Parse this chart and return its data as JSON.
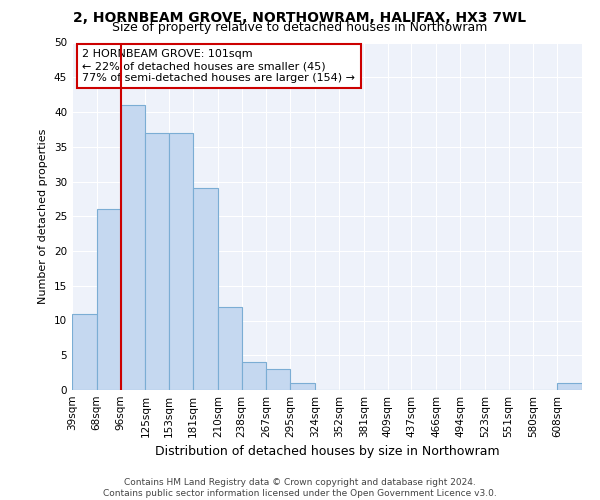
{
  "title1": "2, HORNBEAM GROVE, NORTHOWRAM, HALIFAX, HX3 7WL",
  "title2": "Size of property relative to detached houses in Northowram",
  "xlabel": "Distribution of detached houses by size in Northowram",
  "ylabel": "Number of detached properties",
  "footer1": "Contains HM Land Registry data © Crown copyright and database right 2024.",
  "footer2": "Contains public sector information licensed under the Open Government Licence v3.0.",
  "annotation_line1": "2 HORNBEAM GROVE: 101sqm",
  "annotation_line2": "← 22% of detached houses are smaller (45)",
  "annotation_line3": "77% of semi-detached houses are larger (154) →",
  "property_size": 101,
  "bin_edges": [
    39,
    68,
    96,
    125,
    153,
    181,
    210,
    238,
    267,
    295,
    324,
    352,
    381,
    409,
    437,
    466,
    494,
    523,
    551,
    580,
    608,
    637
  ],
  "bin_labels": [
    "39sqm",
    "68sqm",
    "96sqm",
    "125sqm",
    "153sqm",
    "181sqm",
    "210sqm",
    "238sqm",
    "267sqm",
    "295sqm",
    "324sqm",
    "352sqm",
    "381sqm",
    "409sqm",
    "437sqm",
    "466sqm",
    "494sqm",
    "523sqm",
    "551sqm",
    "580sqm",
    "608sqm"
  ],
  "values": [
    11,
    26,
    41,
    37,
    37,
    29,
    12,
    4,
    3,
    1,
    0,
    0,
    0,
    0,
    0,
    0,
    0,
    0,
    0,
    0,
    1
  ],
  "bar_color": "#c5d8f0",
  "bar_edge_color": "#7badd4",
  "vline_x": 96,
  "vline_color": "#cc0000",
  "annotation_box_color": "#cc0000",
  "background_color": "#eef2fa",
  "ylim": [
    0,
    50
  ],
  "yticks": [
    0,
    5,
    10,
    15,
    20,
    25,
    30,
    35,
    40,
    45,
    50
  ],
  "title1_fontsize": 10,
  "title2_fontsize": 9,
  "xlabel_fontsize": 9,
  "ylabel_fontsize": 8,
  "tick_fontsize": 7.5,
  "annotation_fontsize": 8,
  "footer_fontsize": 6.5
}
